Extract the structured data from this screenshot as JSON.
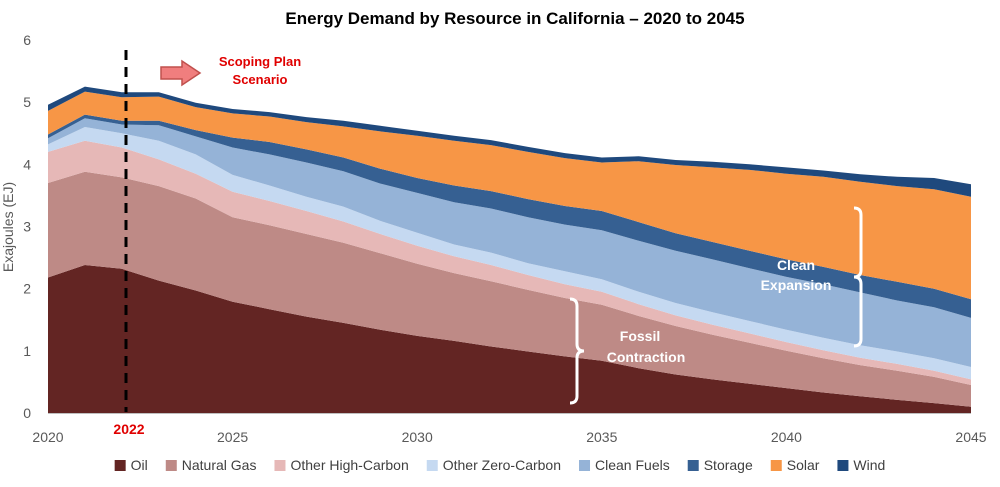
{
  "chart_data": {
    "type": "area",
    "title": "Energy Demand by Resource in California – 2020 to 2045",
    "ylabel": "Exajoules (EJ)",
    "xlabel": "",
    "xlim": [
      2020,
      2045
    ],
    "ylim": [
      0,
      6
    ],
    "x_ticks": [
      "2020",
      "2025",
      "2030",
      "2035",
      "2040",
      "2045"
    ],
    "y_ticks": [
      "0",
      "1",
      "2",
      "3",
      "4",
      "5",
      "6"
    ],
    "x": [
      2020,
      2021,
      2022,
      2023,
      2024,
      2025,
      2026,
      2027,
      2028,
      2029,
      2030,
      2031,
      2032,
      2033,
      2034,
      2035,
      2036,
      2037,
      2038,
      2039,
      2040,
      2041,
      2042,
      2043,
      2044,
      2045
    ],
    "series": [
      {
        "name": "Oil",
        "color": "#632523",
        "values": [
          2.18,
          2.38,
          2.32,
          2.13,
          1.97,
          1.79,
          1.67,
          1.55,
          1.45,
          1.34,
          1.24,
          1.16,
          1.07,
          0.99,
          0.91,
          0.84,
          0.72,
          0.62,
          0.54,
          0.47,
          0.4,
          0.33,
          0.27,
          0.21,
          0.16,
          0.1
        ]
      },
      {
        "name": "Natural Gas",
        "color": "#be8a86",
        "values": [
          1.52,
          1.5,
          1.47,
          1.52,
          1.48,
          1.36,
          1.35,
          1.33,
          1.29,
          1.23,
          1.16,
          1.09,
          1.05,
          0.99,
          0.94,
          0.9,
          0.84,
          0.78,
          0.72,
          0.66,
          0.6,
          0.55,
          0.5,
          0.47,
          0.42,
          0.35
        ]
      },
      {
        "name": "Other High-Carbon",
        "color": "#e6b8b7",
        "values": [
          0.5,
          0.5,
          0.48,
          0.43,
          0.4,
          0.41,
          0.39,
          0.37,
          0.34,
          0.31,
          0.29,
          0.27,
          0.26,
          0.24,
          0.22,
          0.21,
          0.19,
          0.17,
          0.16,
          0.15,
          0.14,
          0.13,
          0.12,
          0.11,
          0.1,
          0.09
        ]
      },
      {
        "name": "Other Zero-Carbon",
        "color": "#c5d9f1",
        "values": [
          0.12,
          0.22,
          0.23,
          0.3,
          0.31,
          0.27,
          0.25,
          0.23,
          0.24,
          0.21,
          0.21,
          0.19,
          0.2,
          0.19,
          0.21,
          0.2,
          0.2,
          0.2,
          0.2,
          0.2,
          0.2,
          0.2,
          0.2,
          0.2,
          0.2,
          0.2
        ]
      },
      {
        "name": "Clean Fuels",
        "color": "#95b3d7",
        "values": [
          0.1,
          0.14,
          0.14,
          0.25,
          0.29,
          0.44,
          0.5,
          0.55,
          0.57,
          0.6,
          0.64,
          0.68,
          0.71,
          0.74,
          0.75,
          0.79,
          0.82,
          0.84,
          0.85,
          0.85,
          0.85,
          0.86,
          0.85,
          0.82,
          0.82,
          0.79
        ]
      },
      {
        "name": "Storage",
        "color": "#366092",
        "values": [
          0.06,
          0.06,
          0.06,
          0.07,
          0.1,
          0.16,
          0.2,
          0.21,
          0.22,
          0.24,
          0.24,
          0.27,
          0.28,
          0.29,
          0.3,
          0.31,
          0.3,
          0.28,
          0.28,
          0.28,
          0.28,
          0.28,
          0.28,
          0.3,
          0.3,
          0.3
        ]
      },
      {
        "name": "Solar",
        "color": "#f79646",
        "values": [
          0.38,
          0.37,
          0.38,
          0.39,
          0.37,
          0.39,
          0.41,
          0.44,
          0.5,
          0.6,
          0.68,
          0.72,
          0.74,
          0.76,
          0.77,
          0.78,
          0.98,
          1.1,
          1.2,
          1.3,
          1.38,
          1.45,
          1.5,
          1.54,
          1.6,
          1.65
        ]
      },
      {
        "name": "Wind",
        "color": "#1f497d",
        "values": [
          0.1,
          0.08,
          0.08,
          0.07,
          0.07,
          0.07,
          0.07,
          0.08,
          0.09,
          0.09,
          0.08,
          0.08,
          0.08,
          0.08,
          0.08,
          0.08,
          0.08,
          0.08,
          0.09,
          0.09,
          0.1,
          0.1,
          0.12,
          0.15,
          0.18,
          0.2
        ]
      }
    ],
    "legend_position": "bottom",
    "grid": false,
    "annotations": {
      "marker_year_label": "2022",
      "scenario_label_line1": "Scoping Plan",
      "scenario_label_line2": "Scenario",
      "fossil_label_line1": "Fossil",
      "fossil_label_line2": "Contraction",
      "clean_label_line1": "Clean",
      "clean_label_line2": "Expansion"
    }
  }
}
